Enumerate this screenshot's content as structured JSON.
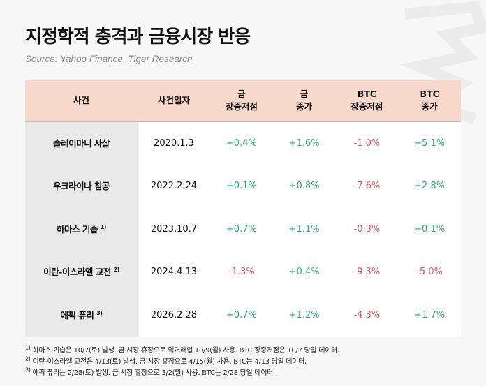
{
  "title": "지정학적 충격과 금융시장 반응",
  "source": "Source: Yahoo Finance, Tiger Research",
  "chart_data": {
    "type": "table",
    "columns": [
      "사건",
      "사건일자",
      "금 장중저점",
      "금 종가",
      "BTC 장중저점",
      "BTC 종가"
    ],
    "header_lines": [
      [
        "사건"
      ],
      [
        "사건일자"
      ],
      [
        "금",
        "장중저점"
      ],
      [
        "금",
        "종가"
      ],
      [
        "BTC",
        "장중저점"
      ],
      [
        "BTC",
        "종가"
      ]
    ],
    "rows": [
      {
        "event": "솔레이마니 사살",
        "note": "",
        "date": "2020.1.3",
        "values": [
          "+0.4%",
          "+1.6%",
          "-1.0%",
          "+5.1%"
        ]
      },
      {
        "event": "우크라이나 침공",
        "note": "",
        "date": "2022.2.24",
        "values": [
          "+0.1%",
          "+0.8%",
          "-7.6%",
          "+2.8%"
        ]
      },
      {
        "event": "하마스 기습",
        "note": "1)",
        "date": "2023.10.7",
        "values": [
          "+0.7%",
          "+1.1%",
          "-0.3%",
          "+0.1%"
        ]
      },
      {
        "event": "이란-이스라엘 교전",
        "note": "2)",
        "date": "2024.4.13",
        "values": [
          "-1.3%",
          "+0.4%",
          "-9.3%",
          "-5.0%"
        ]
      },
      {
        "event": "에픽 퓨리",
        "note": "3)",
        "date": "2026.2.28",
        "values": [
          "+0.7%",
          "+1.2%",
          "-4.3%",
          "+1.7%"
        ]
      }
    ],
    "colors": {
      "positive": "#2ea979",
      "negative": "#e0585b",
      "header_bg": "#f7d9cb"
    }
  },
  "footnotes": [
    {
      "mark": "1)",
      "text": "하마스 기습은 10/7(토) 발생. 금 시장 휴장으로 익거래일 10/9(월) 사용. BTC 장중저점은 10/7 당일 데이터."
    },
    {
      "mark": "2)",
      "text": "이란-이스라엘 교전은 4/13(토) 발생. 금 시장 휴장으로 4/15(월) 사용. BTC는 4/13 당일 데이터."
    },
    {
      "mark": "3)",
      "text": "에픽 퓨리는 2/28(토) 발생. 금 시장 휴장으로 3/2(월) 사용. BTC는 2/28 당일 데이터."
    }
  ]
}
